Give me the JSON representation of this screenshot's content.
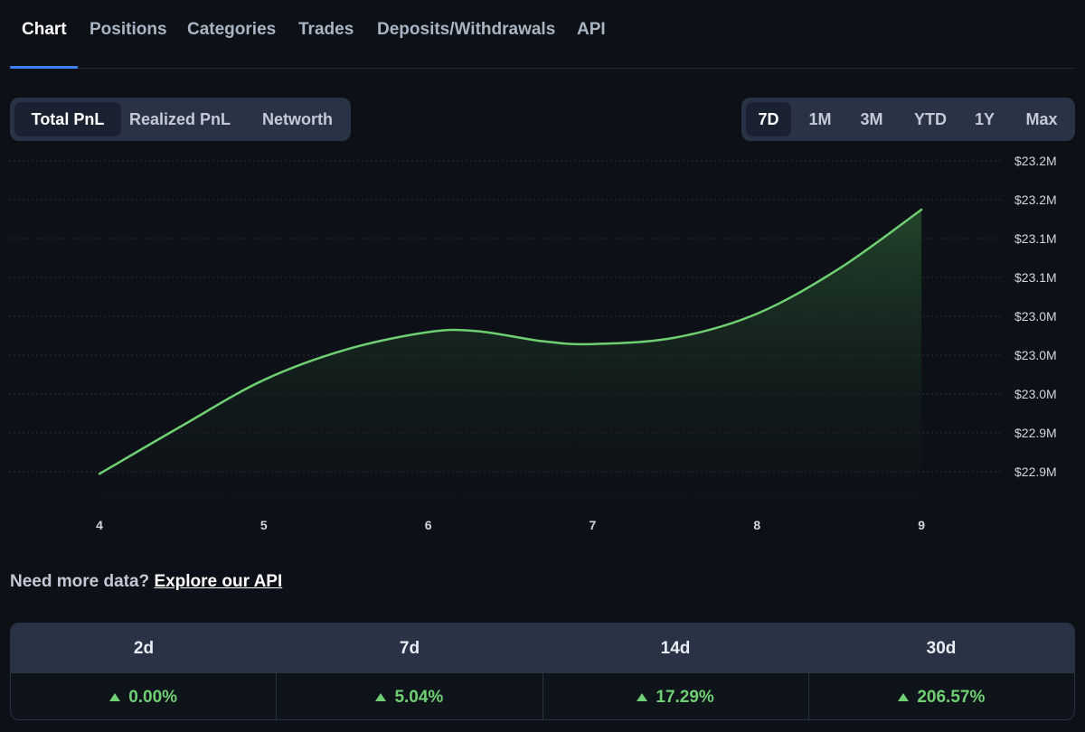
{
  "tabs": [
    {
      "label": "Chart",
      "active": true
    },
    {
      "label": "Positions"
    },
    {
      "label": "Categories"
    },
    {
      "label": "Trades"
    },
    {
      "label": "Deposits/Withdrawals"
    },
    {
      "label": "API"
    }
  ],
  "metric_toggle": {
    "options": [
      "Total PnL",
      "Realized PnL",
      "Networth"
    ],
    "selected": "Total PnL"
  },
  "range_toggle": {
    "options": [
      "7D",
      "1M",
      "3M",
      "YTD",
      "1Y",
      "Max"
    ],
    "selected": "7D"
  },
  "chart_data": {
    "type": "area",
    "x": [
      4,
      5,
      6,
      7,
      8,
      9
    ],
    "y_ticks": [
      "$23.2M",
      "$23.2M",
      "$23.1M",
      "$23.1M",
      "$23.0M",
      "$23.0M",
      "$23.0M",
      "$22.9M",
      "$22.9M"
    ],
    "x_ticks": [
      "4",
      "5",
      "6",
      "7",
      "8",
      "9"
    ],
    "series": [
      {
        "points": [
          [
            4.0,
            22.875
          ],
          [
            4.5,
            22.927
          ],
          [
            5.0,
            22.977
          ],
          [
            5.5,
            23.01
          ],
          [
            6.0,
            23.029
          ],
          [
            6.3,
            23.03
          ],
          [
            6.7,
            23.019
          ],
          [
            7.0,
            23.016
          ],
          [
            7.5,
            23.023
          ],
          [
            8.0,
            23.049
          ],
          [
            8.5,
            23.098
          ],
          [
            9.0,
            23.162
          ]
        ]
      }
    ],
    "ylim": [
      22.84,
      23.215
    ],
    "xlim": [
      3.45,
      9.5
    ],
    "grid": true,
    "line_color": "#6fcf73",
    "fill_color": "#1f3a24"
  },
  "api_prompt": {
    "text": "Need more data?",
    "link": "Explore our API"
  },
  "stats": {
    "headers": [
      "2d",
      "7d",
      "14d",
      "30d"
    ],
    "values": [
      "0.00%",
      "5.04%",
      "17.29%",
      "206.57%"
    ],
    "positive_color": "#6fcf73"
  }
}
